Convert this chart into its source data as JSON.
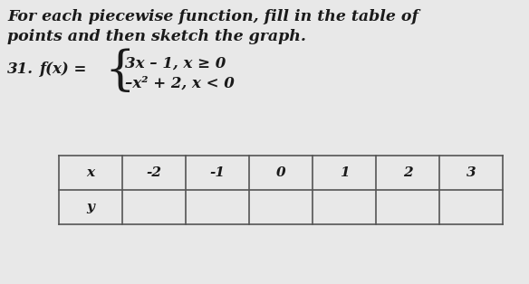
{
  "title_line1": "For each piecewise function, fill in the table of",
  "title_line2": "points and then sketch the graph.",
  "problem_number": "31.",
  "func_label": "f(x) =",
  "piece1": "3x – 1, x ≥ 0",
  "piece2": "–x² + 2, x < 0",
  "x_label": "x",
  "y_label": "y",
  "x_values": [
    "-2",
    "-1",
    "0",
    "1",
    "2",
    "3"
  ],
  "background_color": "#e8e8e8",
  "text_color": "#1a1a1a",
  "table_border_color": "#555555",
  "title_fontsize": 12.5,
  "problem_fontsize": 12,
  "table_fontsize": 11
}
